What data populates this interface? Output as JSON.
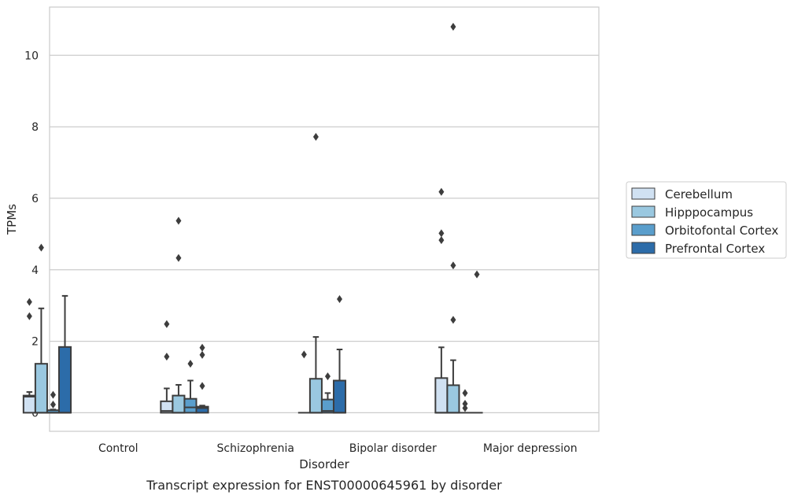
{
  "chart_data": {
    "type": "box",
    "caption": "Transcript expression for ENST00000645961 by disorder",
    "xlabel": "Disorder",
    "ylabel": "TPMs",
    "ylim": [
      -0.52,
      11.35
    ],
    "yticks": [
      0,
      2,
      4,
      6,
      8,
      10
    ],
    "grid": "horizontal",
    "legend_position": "right",
    "categories": [
      "Control",
      "Schizophrenia",
      "Bipolar disorder",
      "Major depression"
    ],
    "series": [
      {
        "name": "Cerebellum",
        "color": "#d0e1f2",
        "boxes": [
          {
            "whisker_low": 0,
            "q1": 0,
            "median": 0.45,
            "q3": 0.48,
            "whisker_high": 0.58,
            "outliers": [
              2.7,
              3.1
            ]
          },
          {
            "whisker_low": 0,
            "q1": 0,
            "median": 0.05,
            "q3": 0.32,
            "whisker_high": 0.68,
            "outliers": [
              1.57,
              2.48
            ]
          },
          {
            "whisker_low": 0,
            "q1": 0,
            "median": 0,
            "q3": 0,
            "whisker_high": 0,
            "outliers": [
              1.63
            ]
          },
          {
            "whisker_low": 0,
            "q1": 0,
            "median": 0,
            "q3": 0.97,
            "whisker_high": 1.83,
            "outliers": [
              4.83,
              5.02,
              6.18
            ]
          }
        ]
      },
      {
        "name": "Hipppocampus",
        "color": "#9ac8e0",
        "boxes": [
          {
            "whisker_low": 0,
            "q1": 0,
            "median": 0,
            "q3": 1.37,
            "whisker_high": 2.92,
            "outliers": [
              4.62
            ]
          },
          {
            "whisker_low": 0,
            "q1": 0,
            "median": 0,
            "q3": 0.48,
            "whisker_high": 0.78,
            "outliers": [
              4.33,
              5.37
            ]
          },
          {
            "whisker_low": 0,
            "q1": 0,
            "median": 0,
            "q3": 0.95,
            "whisker_high": 2.12,
            "outliers": [
              7.72
            ]
          },
          {
            "whisker_low": 0,
            "q1": 0,
            "median": 0,
            "q3": 0.77,
            "whisker_high": 1.47,
            "outliers": [
              2.6,
              4.12,
              10.8
            ]
          }
        ]
      },
      {
        "name": "Orbitofontal Cortex",
        "color": "#5a9ecc",
        "boxes": [
          {
            "whisker_low": 0,
            "q1": 0,
            "median": 0,
            "q3": 0.07,
            "whisker_high": 0.09,
            "outliers": [
              0.23,
              0.5
            ]
          },
          {
            "whisker_low": 0,
            "q1": 0,
            "median": 0.15,
            "q3": 0.39,
            "whisker_high": 0.9,
            "outliers": [
              1.37
            ]
          },
          {
            "whisker_low": 0,
            "q1": 0,
            "median": 0.05,
            "q3": 0.37,
            "whisker_high": 0.55,
            "outliers": [
              1.02
            ]
          },
          {
            "whisker_low": 0,
            "q1": 0,
            "median": 0,
            "q3": 0,
            "whisker_high": 0,
            "outliers": [
              0.13,
              0.25,
              0.55
            ]
          }
        ]
      },
      {
        "name": "Prefrontal Cortex",
        "color": "#2c6ca9",
        "boxes": [
          {
            "whisker_low": 0,
            "q1": 0,
            "median": 0,
            "q3": 1.84,
            "whisker_high": 3.27,
            "outliers": []
          },
          {
            "whisker_low": 0,
            "q1": 0,
            "median": 0.13,
            "q3": 0.17,
            "whisker_high": 0.2,
            "outliers": [
              0.75,
              1.62,
              1.82
            ]
          },
          {
            "whisker_low": 0,
            "q1": 0,
            "median": 0,
            "q3": 0.9,
            "whisker_high": 1.77,
            "outliers": [
              3.18
            ]
          },
          {
            "whisker_low": 0,
            "q1": 0,
            "median": 0,
            "q3": 0,
            "whisker_high": 0,
            "outliers": [
              3.87
            ]
          }
        ]
      }
    ]
  }
}
